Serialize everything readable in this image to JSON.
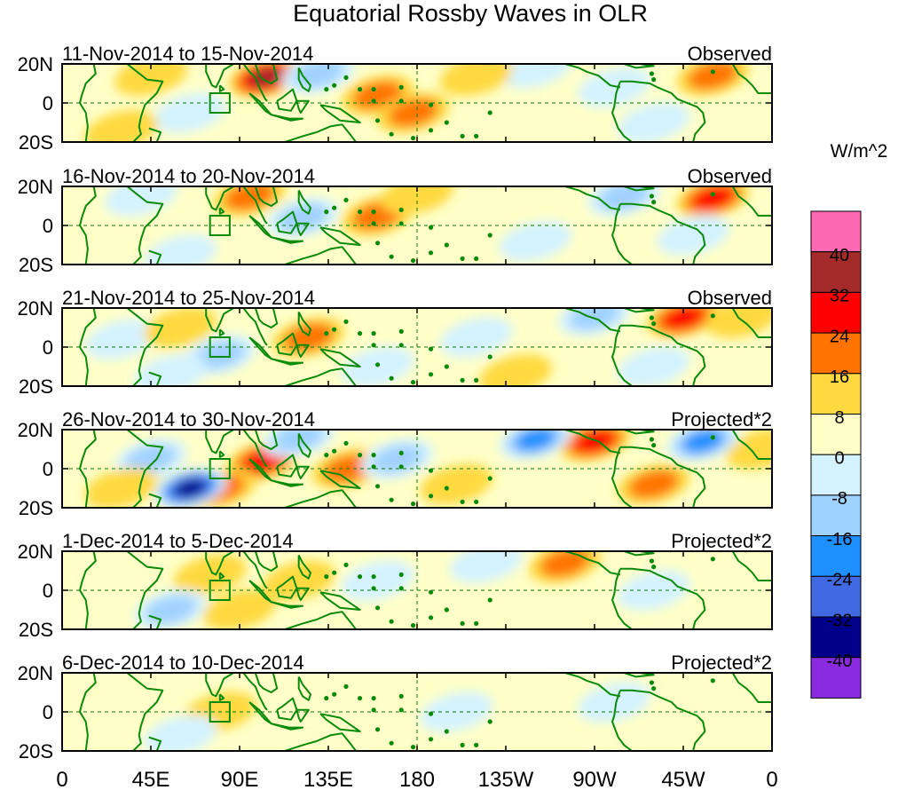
{
  "chart_data": {
    "type": "heatmap",
    "title": "Equatorial Rossby Waves in OLR",
    "units": "W/m^2",
    "x_ticks": [
      "0",
      "45E",
      "90E",
      "135E",
      "180",
      "135W",
      "90W",
      "45W",
      "0"
    ],
    "x_range": [
      0,
      360
    ],
    "y_ticks": [
      "20N",
      "0",
      "20S"
    ],
    "y_range": [
      -20,
      20
    ],
    "contour_levels": [
      40,
      32,
      24,
      16,
      8,
      0,
      -8,
      -16,
      -24,
      -32,
      -40
    ],
    "colors": {
      "above_40": "#ff69b4",
      "32_to_40": "#a52a2a",
      "24_to_32": "#ff0000",
      "16_to_24": "#ff7400",
      "8_to_16": "#ffd940",
      "0_to_8": "#ffffc8",
      "m8_to_0": "#d4f3ff",
      "m16_to_m8": "#a0d2ff",
      "m24_to_m16": "#1e90ff",
      "m32_to_m24": "#4169e1",
      "m40_to_m32": "#00008b",
      "below_m40": "#8a2be2",
      "coast": "#0a8a0a"
    },
    "panels": [
      {
        "period": "11-Nov-2014 to 15-Nov-2014",
        "label": "Observed",
        "blobs": [
          {
            "lon": 103,
            "lat": 13,
            "value": 36
          },
          {
            "lon": 160,
            "lat": 4,
            "value": 18
          },
          {
            "lon": 178,
            "lat": -5,
            "value": 18
          },
          {
            "lon": 330,
            "lat": 14,
            "value": 20
          },
          {
            "lon": 130,
            "lat": 15,
            "value": -22
          },
          {
            "lon": 65,
            "lat": -5,
            "value": -14
          },
          {
            "lon": 280,
            "lat": 8,
            "value": -14
          },
          {
            "lon": 240,
            "lat": 18,
            "value": -12
          },
          {
            "lon": 45,
            "lat": 14,
            "value": 10
          },
          {
            "lon": 30,
            "lat": -14,
            "value": 10
          },
          {
            "lon": 210,
            "lat": 14,
            "value": 8
          },
          {
            "lon": 300,
            "lat": -10,
            "value": -10
          }
        ]
      },
      {
        "period": "16-Nov-2014 to 20-Nov-2014",
        "label": "Observed",
        "blobs": [
          {
            "lon": 95,
            "lat": 15,
            "value": 22
          },
          {
            "lon": 160,
            "lat": 5,
            "value": 20
          },
          {
            "lon": 330,
            "lat": 14,
            "value": 30
          },
          {
            "lon": 122,
            "lat": 4,
            "value": -18
          },
          {
            "lon": 40,
            "lat": 15,
            "value": -12
          },
          {
            "lon": 60,
            "lat": -15,
            "value": -14
          },
          {
            "lon": 285,
            "lat": 15,
            "value": -20
          },
          {
            "lon": 320,
            "lat": -5,
            "value": -12
          },
          {
            "lon": 180,
            "lat": 16,
            "value": 8
          },
          {
            "lon": 240,
            "lat": -8,
            "value": -10
          }
        ]
      },
      {
        "period": "21-Nov-2014 to 25-Nov-2014",
        "label": "Observed",
        "blobs": [
          {
            "lon": 125,
            "lat": 5,
            "value": 18
          },
          {
            "lon": 315,
            "lat": 15,
            "value": 24
          },
          {
            "lon": 345,
            "lat": 15,
            "value": 12
          },
          {
            "lon": 270,
            "lat": 16,
            "value": -18
          },
          {
            "lon": 80,
            "lat": -4,
            "value": -16
          },
          {
            "lon": 55,
            "lat": -14,
            "value": -12
          },
          {
            "lon": 30,
            "lat": 4,
            "value": -10
          },
          {
            "lon": 160,
            "lat": -10,
            "value": -12
          },
          {
            "lon": 210,
            "lat": 5,
            "value": -10
          },
          {
            "lon": 300,
            "lat": -10,
            "value": -10
          },
          {
            "lon": 60,
            "lat": 10,
            "value": 8
          },
          {
            "lon": 230,
            "lat": -14,
            "value": 8
          }
        ]
      },
      {
        "period": "26-Nov-2014 to 30-Nov-2014",
        "label": "Projected*2",
        "blobs": [
          {
            "lon": 102,
            "lat": 4,
            "value": 30
          },
          {
            "lon": 145,
            "lat": 0,
            "value": 18
          },
          {
            "lon": 80,
            "lat": -10,
            "value": 18
          },
          {
            "lon": 270,
            "lat": 14,
            "value": 24
          },
          {
            "lon": 300,
            "lat": -8,
            "value": 20
          },
          {
            "lon": 355,
            "lat": 10,
            "value": 14
          },
          {
            "lon": 65,
            "lat": -10,
            "value": -42
          },
          {
            "lon": 240,
            "lat": 15,
            "value": -28
          },
          {
            "lon": 325,
            "lat": 14,
            "value": -28
          },
          {
            "lon": 170,
            "lat": 5,
            "value": -22
          },
          {
            "lon": 45,
            "lat": 5,
            "value": -16
          },
          {
            "lon": 120,
            "lat": 16,
            "value": -16
          },
          {
            "lon": 200,
            "lat": -8,
            "value": 10
          },
          {
            "lon": 30,
            "lat": -10,
            "value": 8
          }
        ]
      },
      {
        "period": "1-Dec-2014 to 5-Dec-2014",
        "label": "Projected*2",
        "blobs": [
          {
            "lon": 90,
            "lat": -10,
            "value": 14
          },
          {
            "lon": 255,
            "lat": 14,
            "value": 16
          },
          {
            "lon": 120,
            "lat": 5,
            "value": 10
          },
          {
            "lon": 75,
            "lat": 8,
            "value": 8
          },
          {
            "lon": 55,
            "lat": -10,
            "value": -16
          },
          {
            "lon": 160,
            "lat": 5,
            "value": -12
          },
          {
            "lon": 215,
            "lat": 14,
            "value": -8
          },
          {
            "lon": 300,
            "lat": 0,
            "value": -8
          },
          {
            "lon": 20,
            "lat": 10,
            "value": 6
          }
        ]
      },
      {
        "period": "6-Dec-2014 to 10-Dec-2014",
        "label": "Projected*2",
        "blobs": [
          {
            "lon": 80,
            "lat": 0,
            "value": 10
          },
          {
            "lon": 60,
            "lat": -12,
            "value": -10
          },
          {
            "lon": 130,
            "lat": -5,
            "value": 6
          },
          {
            "lon": 200,
            "lat": 0,
            "value": -6
          },
          {
            "lon": 280,
            "lat": 5,
            "value": -6
          },
          {
            "lon": 40,
            "lat": 10,
            "value": 5
          }
        ]
      }
    ]
  }
}
